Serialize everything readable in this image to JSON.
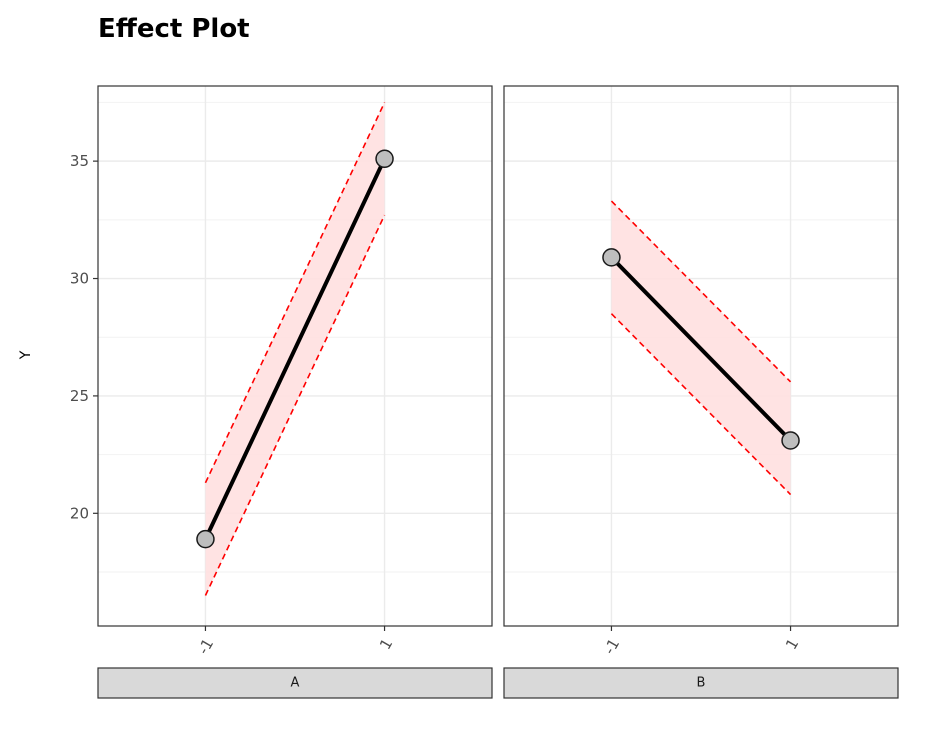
{
  "chart_data": {
    "type": "line",
    "title": "Effect Plot",
    "xlabel": "",
    "ylabel": "Y",
    "ylim": [
      15.2,
      38.2
    ],
    "yticks": [
      20,
      25,
      30,
      35
    ],
    "x_categories": [
      "-1",
      "1"
    ],
    "grid": true,
    "band_color": "#ffe0e0",
    "ci_line_color": "#ff0000",
    "line_color": "#000000",
    "point_fill": "#bebebe",
    "strip_fill": "#d9d9d9",
    "panels": [
      {
        "name": "A",
        "x": [
          "-1",
          "1"
        ],
        "y": [
          18.9,
          35.1
        ],
        "lower": [
          16.5,
          32.7
        ],
        "upper": [
          21.3,
          37.5
        ]
      },
      {
        "name": "B",
        "x": [
          "-1",
          "1"
        ],
        "y": [
          30.9,
          23.1
        ],
        "lower": [
          28.5,
          20.8
        ],
        "upper": [
          33.3,
          25.6
        ]
      }
    ]
  }
}
